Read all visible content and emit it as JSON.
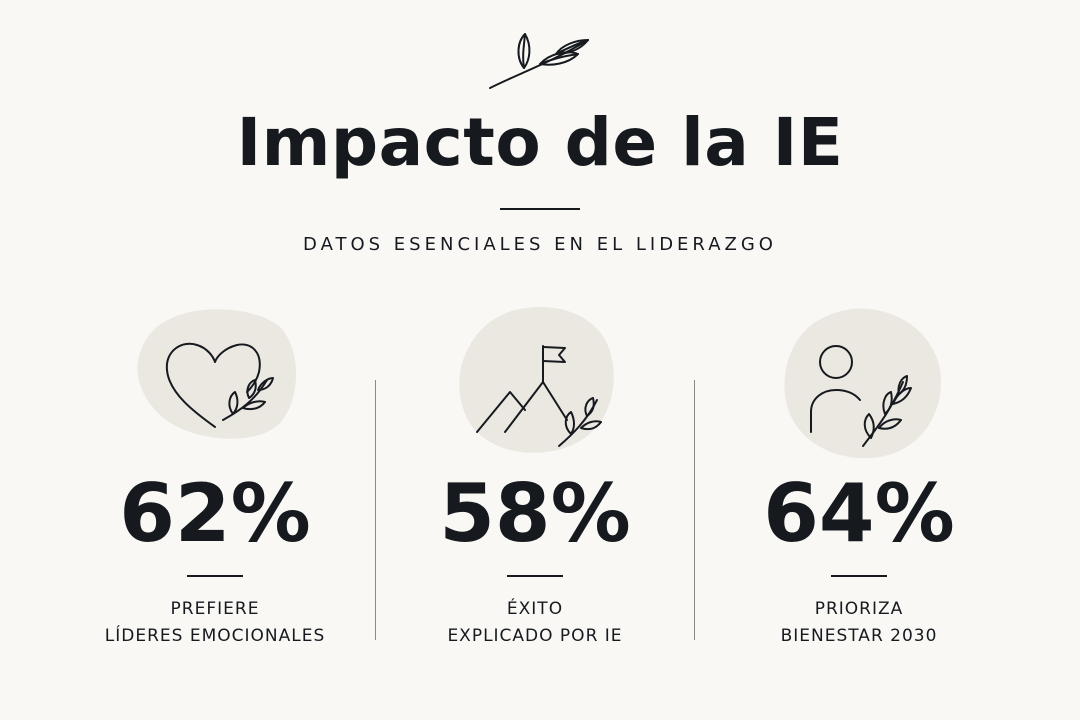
{
  "title": "Impacto de la IE",
  "subtitle": "DATOS ESENCIALES EN EL LIDERAZGO",
  "colors": {
    "background": "#f9f8f5",
    "ink": "#161a1f",
    "blob": "#ebe8e2",
    "divider": "#8a8a86"
  },
  "header_icon": "leaf-sprig-icon",
  "stats": [
    {
      "icon": "heart-with-leaves-icon",
      "value": "62%",
      "label_line1": "PREFIERE",
      "label_line2": "LÍDERES EMOCIONALES"
    },
    {
      "icon": "mountain-flag-icon",
      "value": "58%",
      "label_line1": "ÉXITO",
      "label_line2": "EXPLICADO POR IE"
    },
    {
      "icon": "person-with-leaves-icon",
      "value": "64%",
      "label_line1": "PRIORIZA",
      "label_line2": "BIENESTAR 2030"
    }
  ]
}
